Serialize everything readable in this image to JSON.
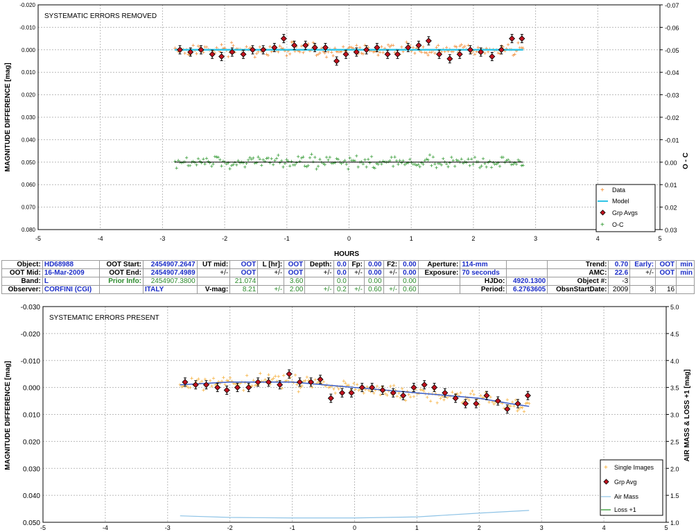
{
  "colors": {
    "data": "#f07f1f",
    "model": "#2fc4e6",
    "grp": "#c0121e",
    "oc": "#1c8f1c",
    "single": "#f5a623",
    "airmass": "#8ec3e6",
    "trend": "#4466cc",
    "loss": "#1c8f1c",
    "blue_text": "#1c2ec8",
    "green_text": "#2a8a2a",
    "grid": "#b9b9b9"
  },
  "top_chart": {
    "title": "SYSTEMATIC ERRORS REMOVED",
    "ylabel_left": "MAGNITUDE DIFFERENCE [mag]",
    "ylabel_right": "O - C",
    "xlabel": "HOURS",
    "x_ticks": [
      "-5",
      "-4",
      "-3",
      "-2",
      "-1",
      "0",
      "1",
      "2",
      "3",
      "4",
      "5"
    ],
    "y_ticks_left": [
      "-0.020",
      "-0.010",
      "0.000",
      "0.010",
      "0.020",
      "0.030",
      "0.040",
      "0.050",
      "0.060",
      "0.070",
      "0.080"
    ],
    "y_ticks_right": [
      "-0.07",
      "-0.06",
      "-0.05",
      "-0.04",
      "-0.03",
      "-0.02",
      "-0.01",
      "0.00",
      "0.01",
      "0.02",
      "0.03"
    ],
    "legend": [
      "Data",
      "Model",
      "Grp Avgs",
      "O-C"
    ]
  },
  "bottom_chart": {
    "title": "SYSTEMATIC ERRORS PRESENT",
    "ylabel_left": "MAGNITUDE DIFFERENCE [mag]",
    "ylabel_right": "AIR MASS & LOSS +1 [mag]",
    "x_ticks": [
      "-5",
      "-4",
      "-3",
      "-2",
      "-1",
      "0",
      "1",
      "2",
      "3",
      "4",
      "5"
    ],
    "y_ticks_left": [
      "-0.030",
      "-0.020",
      "-0.010",
      "0.000",
      "0.010",
      "0.020",
      "0.030",
      "0.040",
      "0.050"
    ],
    "y_ticks_right": [
      "5.0",
      "4.5",
      "4.0",
      "3.5",
      "3.0",
      "2.5",
      "2.0",
      "1.5",
      "1.0"
    ],
    "legend": [
      "Single Images",
      "Grp Avg",
      "Air Mass",
      "Loss +1"
    ]
  },
  "info": {
    "r1": [
      "Object:",
      "HD68988",
      "OOT Start:",
      "2454907.2647",
      "UT mid:",
      "OOT",
      "L [hr]:",
      "OOT",
      "Depth:",
      "0.0",
      "Fp:",
      "0.00",
      "F2:",
      "0.00",
      "Aperture:",
      "114-mm",
      "",
      "Trend:",
      "0.70",
      "Early:",
      "OOT",
      "min"
    ],
    "r2": [
      "OOT Mid:",
      "16-Mar-2009",
      "OOT End:",
      "2454907.4989",
      "+/-",
      "OOT",
      "+/-",
      "OOT",
      "+/-",
      "0.0",
      "+/-",
      "0.00",
      "+/-",
      "0.00",
      "Exposure:",
      "70 seconds",
      "",
      "AMC:",
      "22.6",
      "+/-",
      "OOT",
      "min"
    ],
    "r3": [
      "Band:",
      "L",
      "Prior Info:",
      "2454907.3800",
      "",
      "21.074",
      "",
      "3.60",
      "",
      "0.0",
      "",
      "0.00",
      "",
      "0.00",
      "",
      "HJDo:",
      "4920.1300",
      "Object #:",
      "-3",
      "",
      "",
      ""
    ],
    "r4": [
      "Observer:",
      "CORFINI (CGI)",
      "",
      "ITALY",
      "V-mag:",
      "8.21",
      "+/-",
      "2.00",
      "+/-",
      "0.2",
      "+/-",
      "0.60",
      "+/-",
      "0.60",
      "",
      "Period:",
      "6.2763605",
      "ObsnStartDate:",
      "2009",
      "3",
      "16",
      ""
    ]
  },
  "chart_data": [
    {
      "type": "scatter",
      "title": "SYSTEMATIC ERRORS REMOVED",
      "xlabel": "HOURS",
      "ylabel": "MAGNITUDE DIFFERENCE [mag]",
      "y2label": "O - C",
      "xlim": [
        -5,
        5
      ],
      "ylim": [
        0.08,
        -0.02
      ],
      "y2lim": [
        0.03,
        -0.07
      ],
      "grid": true,
      "legend_position": "bottom-right",
      "series": [
        {
          "name": "Data",
          "x_range": [
            -2.8,
            2.8
          ],
          "approx_y": 0.0,
          "scatter": 0.004
        },
        {
          "name": "Model",
          "x": [
            -2.8,
            2.8
          ],
          "y": [
            0.0,
            0.0
          ]
        },
        {
          "name": "Grp Avgs",
          "x": [
            -2.72,
            -2.55,
            -2.38,
            -2.2,
            -2.05,
            -1.88,
            -1.7,
            -1.55,
            -1.38,
            -1.2,
            -1.05,
            -0.88,
            -0.7,
            -0.55,
            -0.38,
            -0.2,
            -0.05,
            0.12,
            0.28,
            0.45,
            0.62,
            0.78,
            0.95,
            1.12,
            1.28,
            1.45,
            1.62,
            1.78,
            1.95,
            2.12,
            2.3,
            2.45,
            2.62,
            2.78
          ],
          "y": [
            0.0,
            0.001,
            0.0,
            0.002,
            0.003,
            0.001,
            0.002,
            0.0,
            0.0,
            -0.001,
            -0.005,
            -0.002,
            -0.002,
            -0.001,
            -0.001,
            0.005,
            0.002,
            0.001,
            0.0,
            -0.001,
            0.002,
            0.002,
            -0.001,
            -0.002,
            -0.004,
            0.002,
            0.004,
            0.002,
            0.0,
            0.001,
            0.003,
            0.0,
            -0.005,
            -0.005
          ]
        },
        {
          "name": "O-C",
          "x_range": [
            -2.8,
            2.8
          ],
          "approx_y": 0.0,
          "scatter": 0.004
        }
      ]
    },
    {
      "type": "scatter",
      "title": "SYSTEMATIC ERRORS PRESENT",
      "ylabel": "MAGNITUDE DIFFERENCE [mag]",
      "y2label": "AIR MASS & LOSS +1 [mag]",
      "xlim": [
        -5,
        5
      ],
      "ylim": [
        0.05,
        -0.03
      ],
      "y2lim": [
        1.0,
        5.0
      ],
      "grid": true,
      "legend_position": "bottom-right",
      "series": [
        {
          "name": "Single Images",
          "x_range": [
            -2.8,
            2.8
          ],
          "scatter": 0.004
        },
        {
          "name": "Grp Avg",
          "x": [
            -2.72,
            -2.55,
            -2.38,
            -2.2,
            -2.05,
            -1.88,
            -1.7,
            -1.55,
            -1.38,
            -1.2,
            -1.05,
            -0.88,
            -0.7,
            -0.55,
            -0.38,
            -0.2,
            -0.05,
            0.12,
            0.28,
            0.45,
            0.62,
            0.78,
            0.95,
            1.12,
            1.28,
            1.45,
            1.62,
            1.78,
            1.95,
            2.12,
            2.3,
            2.45,
            2.62,
            2.78
          ],
          "y": [
            -0.002,
            -0.001,
            -0.001,
            0.0,
            0.001,
            0.0,
            0.0,
            -0.002,
            -0.002,
            -0.001,
            -0.005,
            -0.002,
            -0.002,
            -0.003,
            0.004,
            0.002,
            0.002,
            0.0,
            0.0,
            0.001,
            0.002,
            0.003,
            0.0,
            -0.001,
            0.0,
            0.002,
            0.004,
            0.006,
            0.006,
            0.003,
            0.005,
            0.008,
            0.006,
            0.003
          ]
        },
        {
          "name": "Trend",
          "x": [
            -2.8,
            -2.0,
            -1.0,
            0.0,
            0.5,
            1.0,
            1.5,
            2.0,
            2.5,
            2.8
          ],
          "y": [
            -0.001,
            -0.002,
            -0.002,
            0.0,
            0.001,
            0.002,
            0.003,
            0.004,
            0.006,
            0.007
          ]
        },
        {
          "name": "Air Mass",
          "x": [
            -2.8,
            -2.0,
            -1.0,
            0.0,
            1.0,
            2.0,
            2.8
          ],
          "y": [
            1.12,
            1.09,
            1.08,
            1.08,
            1.1,
            1.17,
            1.22
          ]
        },
        {
          "name": "Loss +1",
          "x": [
            -2.8,
            2.8
          ],
          "y": [
            1.0,
            1.0
          ]
        }
      ]
    }
  ]
}
